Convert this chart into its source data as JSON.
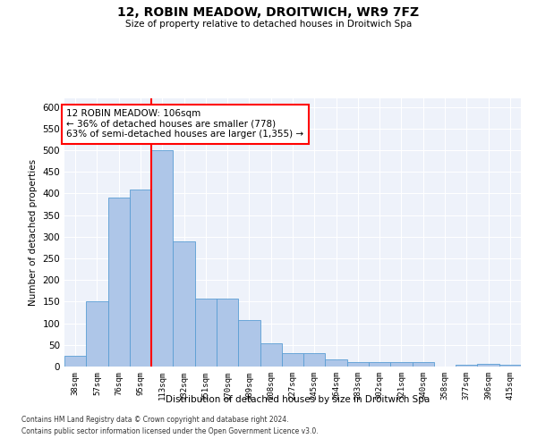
{
  "title": "12, ROBIN MEADOW, DROITWICH, WR9 7FZ",
  "subtitle": "Size of property relative to detached houses in Droitwich Spa",
  "xlabel": "Distribution of detached houses by size in Droitwich Spa",
  "ylabel": "Number of detached properties",
  "bar_color": "#aec6e8",
  "bar_edge_color": "#5a9ed4",
  "background_color": "#eef2fa",
  "grid_color": "#ffffff",
  "categories": [
    "38sqm",
    "57sqm",
    "76sqm",
    "95sqm",
    "113sqm",
    "132sqm",
    "151sqm",
    "170sqm",
    "189sqm",
    "208sqm",
    "227sqm",
    "245sqm",
    "264sqm",
    "283sqm",
    "302sqm",
    "321sqm",
    "340sqm",
    "358sqm",
    "377sqm",
    "396sqm",
    "415sqm"
  ],
  "values": [
    25,
    150,
    390,
    410,
    500,
    290,
    158,
    158,
    107,
    53,
    30,
    30,
    16,
    10,
    10,
    10,
    10,
    0,
    5,
    7,
    5
  ],
  "annotation_text": "12 ROBIN MEADOW: 106sqm\n← 36% of detached houses are smaller (778)\n63% of semi-detached houses are larger (1,355) →",
  "red_line_bin": 4,
  "ylim": [
    0,
    620
  ],
  "yticks": [
    0,
    50,
    100,
    150,
    200,
    250,
    300,
    350,
    400,
    450,
    500,
    550,
    600
  ],
  "footnote1": "Contains HM Land Registry data © Crown copyright and database right 2024.",
  "footnote2": "Contains public sector information licensed under the Open Government Licence v3.0."
}
